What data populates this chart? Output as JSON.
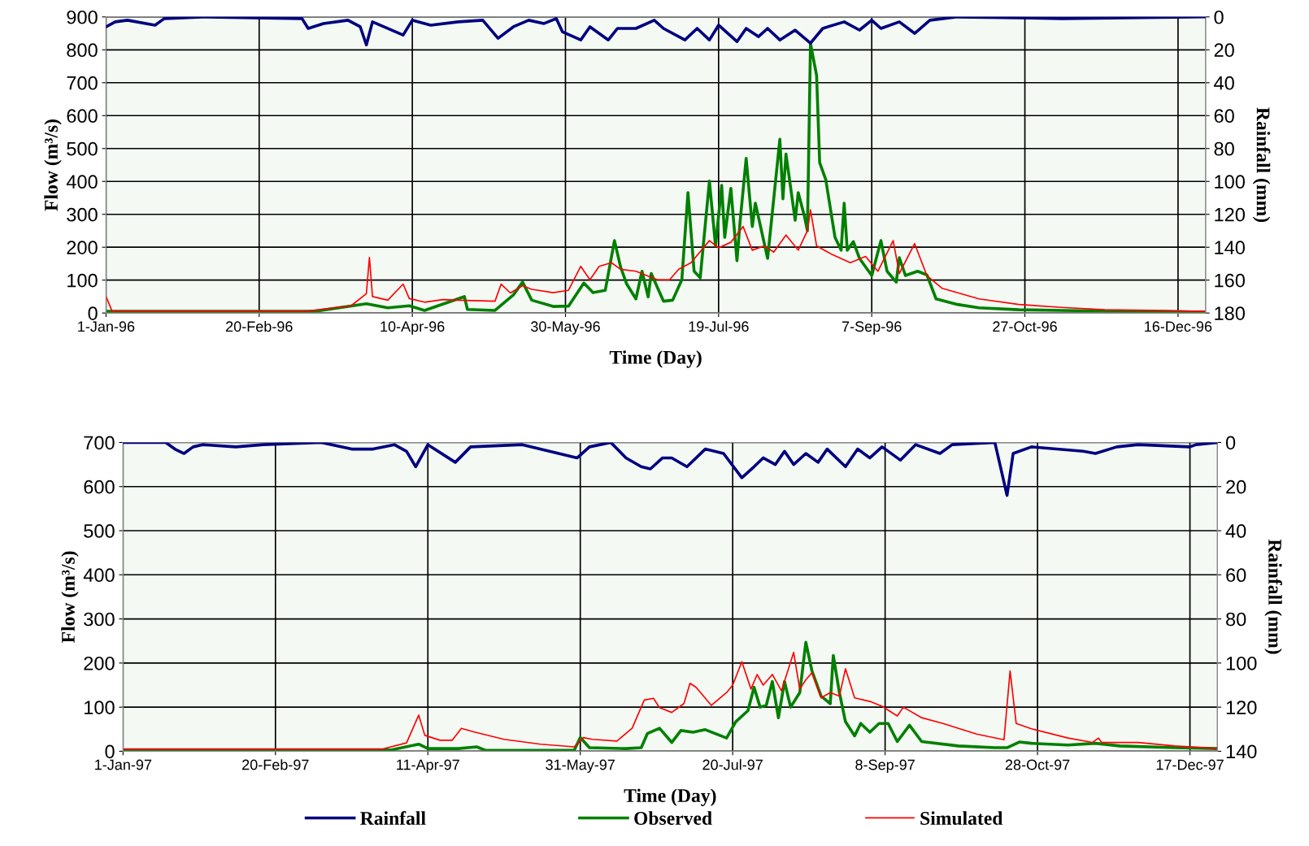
{
  "chart_data": [
    {
      "type": "line",
      "xlabel": "Time (Day)",
      "ylabel": "Flow (m³/s)",
      "y2label": "Rainfall (mm)",
      "xlim": [
        "1996-01-01",
        "1996-12-25"
      ],
      "xticks": [
        {
          "value": "1996-01-01",
          "label": "1-Jan-96"
        },
        {
          "value": "1996-02-20",
          "label": "20-Feb-96"
        },
        {
          "value": "1996-04-10",
          "label": "10-Apr-96"
        },
        {
          "value": "1996-05-30",
          "label": "30-May-96"
        },
        {
          "value": "1996-07-19",
          "label": "19-Jul-96"
        },
        {
          "value": "1996-09-07",
          "label": "7-Sep-96"
        },
        {
          "value": "1996-10-27",
          "label": "27-Oct-96"
        },
        {
          "value": "1996-12-16",
          "label": "16-Dec-96"
        }
      ],
      "ylim": [
        0,
        900
      ],
      "yticks": [
        0,
        100,
        200,
        300,
        400,
        500,
        600,
        700,
        800,
        900
      ],
      "y2lim": [
        180,
        0
      ],
      "y2ticks": [
        0,
        20,
        40,
        60,
        80,
        100,
        120,
        140,
        160,
        180
      ],
      "grid": true,
      "line_style": "solid",
      "marker": "none",
      "series": [
        {
          "color": "#000080",
          "axis": "y2",
          "x": [
            "1996-01-01",
            "1996-01-04",
            "1996-01-08",
            "1996-01-17",
            "1996-01-20",
            "1996-02-03",
            "1996-03-05",
            "1996-03-07",
            "1996-03-12",
            "1996-03-20",
            "1996-03-24",
            "1996-03-26",
            "1996-03-28",
            "1996-04-07",
            "1996-04-10",
            "1996-04-16",
            "1996-04-25",
            "1996-05-03",
            "1996-05-08",
            "1996-05-13",
            "1996-05-18",
            "1996-05-23",
            "1996-05-27",
            "1996-05-29",
            "1996-06-04",
            "1996-06-07",
            "1996-06-13",
            "1996-06-16",
            "1996-06-22",
            "1996-06-28",
            "1996-07-01",
            "1996-07-08",
            "1996-07-12",
            "1996-07-16",
            "1996-07-19",
            "1996-07-25",
            "1996-07-28",
            "1996-08-01",
            "1996-08-04",
            "1996-08-08",
            "1996-08-13",
            "1996-08-18",
            "1996-08-22",
            "1996-08-29",
            "1996-09-03",
            "1996-09-07",
            "1996-09-10",
            "1996-09-16",
            "1996-09-21",
            "1996-09-26",
            "1996-10-05",
            "1996-11-08",
            "1996-12-25"
          ],
          "values": [
            6,
            3,
            2,
            5,
            1,
            0,
            1,
            7,
            4,
            2,
            6,
            17,
            3,
            11,
            2,
            5,
            3,
            2,
            13,
            6,
            2,
            4,
            1,
            9,
            14,
            6,
            14,
            7,
            7,
            2,
            7,
            14,
            7,
            14,
            5,
            15,
            7,
            12,
            7,
            14,
            8,
            16,
            7,
            3,
            8,
            2,
            7,
            3,
            10,
            2,
            0,
            1,
            0
          ]
        },
        {
          "color": "#008000",
          "x": [
            "1996-01-01",
            "1996-03-01",
            "1996-03-09",
            "1996-03-26",
            "1996-04-02",
            "1996-04-09",
            "1996-04-14",
            "1996-04-27",
            "1996-04-28",
            "1996-05-07",
            "1996-05-13",
            "1996-05-16",
            "1996-05-19",
            "1996-05-26",
            "1996-05-31",
            "1996-06-05",
            "1996-06-08",
            "1996-06-12",
            "1996-06-15",
            "1996-06-17",
            "1996-06-19",
            "1996-06-22",
            "1996-06-24",
            "1996-06-26",
            "1996-06-27",
            "1996-07-01",
            "1996-07-04",
            "1996-07-07",
            "1996-07-09",
            "1996-07-11",
            "1996-07-13",
            "1996-07-16",
            "1996-07-18",
            "1996-07-20",
            "1996-07-21",
            "1996-07-23",
            "1996-07-25",
            "1996-07-26",
            "1996-07-28",
            "1996-07-30",
            "1996-07-31",
            "1996-08-04",
            "1996-08-08",
            "1996-08-09",
            "1996-08-10",
            "1996-08-13",
            "1996-08-14",
            "1996-08-16",
            "1996-08-17",
            "1996-08-18",
            "1996-08-20",
            "1996-08-21",
            "1996-08-23",
            "1996-08-26",
            "1996-08-28",
            "1996-08-29",
            "1996-08-30",
            "1996-09-01",
            "1996-09-03",
            "1996-09-07",
            "1996-09-10",
            "1996-09-12",
            "1996-09-15",
            "1996-09-16",
            "1996-09-18",
            "1996-09-22",
            "1996-09-25",
            "1996-09-28",
            "1996-10-05",
            "1996-10-12",
            "1996-10-25",
            "1996-11-08",
            "1996-11-22",
            "1996-12-06",
            "1996-12-25"
          ],
          "values": [
            5,
            5,
            5,
            28,
            16,
            22,
            8,
            50,
            11,
            8,
            55,
            94,
            39,
            20,
            21,
            91,
            62,
            69,
            220,
            140,
            88,
            43,
            127,
            49,
            120,
            36,
            39,
            101,
            366,
            127,
            107,
            401,
            204,
            388,
            230,
            379,
            159,
            276,
            470,
            263,
            334,
            166,
            528,
            347,
            483,
            282,
            366,
            295,
            250,
            819,
            722,
            457,
            405,
            230,
            191,
            334,
            191,
            217,
            166,
            114,
            220,
            127,
            94,
            168,
            114,
            127,
            116,
            43,
            26,
            16,
            10,
            8,
            6,
            5,
            3
          ]
        },
        {
          "color": "#ff0000",
          "x": [
            "1996-01-01",
            "1996-01-03",
            "1996-03-06",
            "1996-03-21",
            "1996-03-26",
            "1996-03-27",
            "1996-03-28",
            "1996-04-02",
            "1996-04-07",
            "1996-04-09",
            "1996-04-14",
            "1996-04-20",
            "1996-04-25",
            "1996-05-07",
            "1996-05-09",
            "1996-05-12",
            "1996-05-16",
            "1996-05-19",
            "1996-05-26",
            "1996-05-31",
            "1996-06-04",
            "1996-06-07",
            "1996-06-10",
            "1996-06-14",
            "1996-06-17",
            "1996-06-22",
            "1996-06-29",
            "1996-07-03",
            "1996-07-06",
            "1996-07-10",
            "1996-07-16",
            "1996-07-19",
            "1996-07-23",
            "1996-07-27",
            "1996-07-30",
            "1996-08-03",
            "1996-08-06",
            "1996-08-10",
            "1996-08-14",
            "1996-08-17",
            "1996-08-18",
            "1996-08-20",
            "1996-08-25",
            "1996-08-31",
            "1996-09-05",
            "1996-09-09",
            "1996-09-14",
            "1996-09-16",
            "1996-09-21",
            "1996-09-25",
            "1996-09-30",
            "1996-10-12",
            "1996-10-25",
            "1996-11-08",
            "1996-11-22",
            "1996-12-06",
            "1996-12-25"
          ],
          "values": [
            50,
            5,
            5,
            22,
            59,
            169,
            50,
            39,
            88,
            44,
            33,
            41,
            39,
            36,
            88,
            61,
            83,
            72,
            62,
            69,
            142,
            101,
            142,
            153,
            133,
            127,
            101,
            101,
            133,
            153,
            220,
            198,
            215,
            263,
            191,
            204,
            185,
            237,
            191,
            250,
            314,
            204,
            178,
            153,
            172,
            127,
            220,
            120,
            211,
            114,
            75,
            43,
            26,
            17,
            10,
            8,
            5
          ]
        }
      ]
    },
    {
      "type": "line",
      "xlabel": "Time (Day)",
      "ylabel": "Flow (m³/s)",
      "y2label": "Rainfall (mm)",
      "xlim": [
        "1997-01-01",
        "1997-12-26"
      ],
      "xticks": [
        {
          "value": "1997-01-01",
          "label": "1-Jan-97"
        },
        {
          "value": "1997-02-20",
          "label": "20-Feb-97"
        },
        {
          "value": "1997-04-11",
          "label": "11-Apr-97"
        },
        {
          "value": "1997-05-31",
          "label": "31-May-97"
        },
        {
          "value": "1997-07-20",
          "label": "20-Jul-97"
        },
        {
          "value": "1997-09-08",
          "label": "8-Sep-97"
        },
        {
          "value": "1997-10-28",
          "label": "28-Oct-97"
        },
        {
          "value": "1997-12-17",
          "label": "17-Dec-97"
        }
      ],
      "ylim": [
        0,
        700
      ],
      "yticks": [
        0,
        100,
        200,
        300,
        400,
        500,
        600,
        700
      ],
      "y2lim": [
        140,
        0
      ],
      "y2ticks": [
        0,
        20,
        40,
        60,
        80,
        100,
        120,
        140
      ],
      "grid": true,
      "line_style": "solid",
      "marker": "none",
      "legend": "bottom",
      "series": [
        {
          "name": "Rainfall",
          "color": "#000080",
          "axis": "y2",
          "x": [
            "1997-01-01",
            "1997-01-15",
            "1997-01-18",
            "1997-01-21",
            "1997-01-24",
            "1997-01-27",
            "1997-02-07",
            "1997-02-16",
            "1997-03-07",
            "1997-03-17",
            "1997-03-24",
            "1997-03-31",
            "1997-04-04",
            "1997-04-07",
            "1997-04-11",
            "1997-04-20",
            "1997-04-25",
            "1997-05-12",
            "1997-05-30",
            "1997-06-03",
            "1997-06-10",
            "1997-06-15",
            "1997-06-20",
            "1997-06-23",
            "1997-06-27",
            "1997-06-30",
            "1997-07-05",
            "1997-07-11",
            "1997-07-17",
            "1997-07-23",
            "1997-07-27",
            "1997-07-30",
            "1997-08-03",
            "1997-08-06",
            "1997-08-09",
            "1997-08-13",
            "1997-08-17",
            "1997-08-20",
            "1997-08-26",
            "1997-08-30",
            "1997-09-03",
            "1997-09-07",
            "1997-09-13",
            "1997-09-18",
            "1997-09-26",
            "1997-09-30",
            "1997-10-14",
            "1997-10-18",
            "1997-10-20",
            "1997-10-26",
            "1997-11-12",
            "1997-11-16",
            "1997-11-23",
            "1997-11-30",
            "1997-12-17",
            "1997-12-19",
            "1997-12-26"
          ],
          "values": [
            0,
            0,
            3,
            5,
            2,
            1,
            2,
            1,
            0,
            3,
            3,
            1,
            4,
            11,
            1,
            9,
            2,
            1,
            7,
            2,
            0,
            7,
            11,
            12,
            7,
            7,
            11,
            3,
            5,
            16,
            11,
            7,
            10,
            4,
            10,
            5,
            9,
            3,
            11,
            3,
            7,
            2,
            8,
            1,
            5,
            1,
            0,
            24,
            5,
            2,
            4,
            5,
            2,
            1,
            2,
            1,
            0
          ]
        },
        {
          "name": "Observed",
          "color": "#008000",
          "x": [
            "1997-01-01",
            "1997-03-30",
            "1997-04-08",
            "1997-04-11",
            "1997-04-21",
            "1997-04-27",
            "1997-04-30",
            "1997-05-29",
            "1997-05-31",
            "1997-06-03",
            "1997-06-15",
            "1997-06-20",
            "1997-06-22",
            "1997-06-26",
            "1997-06-30",
            "1997-07-03",
            "1997-07-07",
            "1997-07-11",
            "1997-07-18",
            "1997-07-21",
            "1997-07-25",
            "1997-07-27",
            "1997-07-29",
            "1997-07-31",
            "1997-08-02",
            "1997-08-04",
            "1997-08-06",
            "1997-08-08",
            "1997-08-11",
            "1997-08-13",
            "1997-08-15",
            "1997-08-18",
            "1997-08-21",
            "1997-08-22",
            "1997-08-24",
            "1997-08-26",
            "1997-08-29",
            "1997-08-31",
            "1997-09-03",
            "1997-09-06",
            "1997-09-09",
            "1997-09-12",
            "1997-09-16",
            "1997-09-20",
            "1997-10-02",
            "1997-10-14",
            "1997-10-18",
            "1997-10-22",
            "1997-10-26",
            "1997-11-07",
            "1997-11-16",
            "1997-11-24",
            "1997-12-12",
            "1997-12-26"
          ],
          "values": [
            3,
            3,
            16,
            6,
            6,
            10,
            2,
            2,
            31,
            8,
            6,
            8,
            40,
            52,
            20,
            47,
            43,
            49,
            30,
            67,
            92,
            145,
            100,
            104,
            158,
            76,
            158,
            100,
            133,
            247,
            182,
            125,
            108,
            217,
            133,
            67,
            35,
            63,
            43,
            63,
            63,
            22,
            59,
            22,
            12,
            8,
            8,
            21,
            18,
            14,
            18,
            12,
            8,
            6
          ]
        },
        {
          "name": "Simulated",
          "color": "#ff0000",
          "x": [
            "1997-01-01",
            "1997-03-27",
            "1997-04-04",
            "1997-04-08",
            "1997-04-10",
            "1997-04-15",
            "1997-04-19",
            "1997-04-22",
            "1997-04-26",
            "1997-05-06",
            "1997-05-18",
            "1997-05-29",
            "1997-06-01",
            "1997-06-04",
            "1997-06-12",
            "1997-06-17",
            "1997-06-21",
            "1997-06-24",
            "1997-06-26",
            "1997-06-30",
            "1997-07-04",
            "1997-07-06",
            "1997-07-08",
            "1997-07-13",
            "1997-07-18",
            "1997-07-20",
            "1997-07-23",
            "1997-07-26",
            "1997-07-28",
            "1997-07-30",
            "1997-08-02",
            "1997-08-05",
            "1997-08-09",
            "1997-08-11",
            "1997-08-13",
            "1997-08-15",
            "1997-08-18",
            "1997-08-21",
            "1997-08-24",
            "1997-08-26",
            "1997-08-29",
            "1997-09-03",
            "1997-09-07",
            "1997-09-12",
            "1997-09-14",
            "1997-09-20",
            "1997-09-27",
            "1997-10-08",
            "1997-10-17",
            "1997-10-19",
            "1997-10-21",
            "1997-10-26",
            "1997-11-07",
            "1997-11-15",
            "1997-11-17",
            "1997-11-18",
            "1997-11-30",
            "1997-12-12",
            "1997-12-26"
          ],
          "values": [
            5,
            5,
            19,
            82,
            36,
            25,
            25,
            52,
            44,
            27,
            16,
            10,
            31,
            27,
            23,
            52,
            116,
            120,
            99,
            88,
            108,
            154,
            145,
            104,
            133,
            150,
            203,
            141,
            174,
            150,
            174,
            137,
            224,
            141,
            162,
            178,
            121,
            133,
            125,
            187,
            121,
            113,
            102,
            80,
            100,
            76,
            63,
            39,
            26,
            182,
            63,
            51,
            30,
            20,
            30,
            20,
            20,
            12,
            6
          ]
        }
      ]
    }
  ]
}
